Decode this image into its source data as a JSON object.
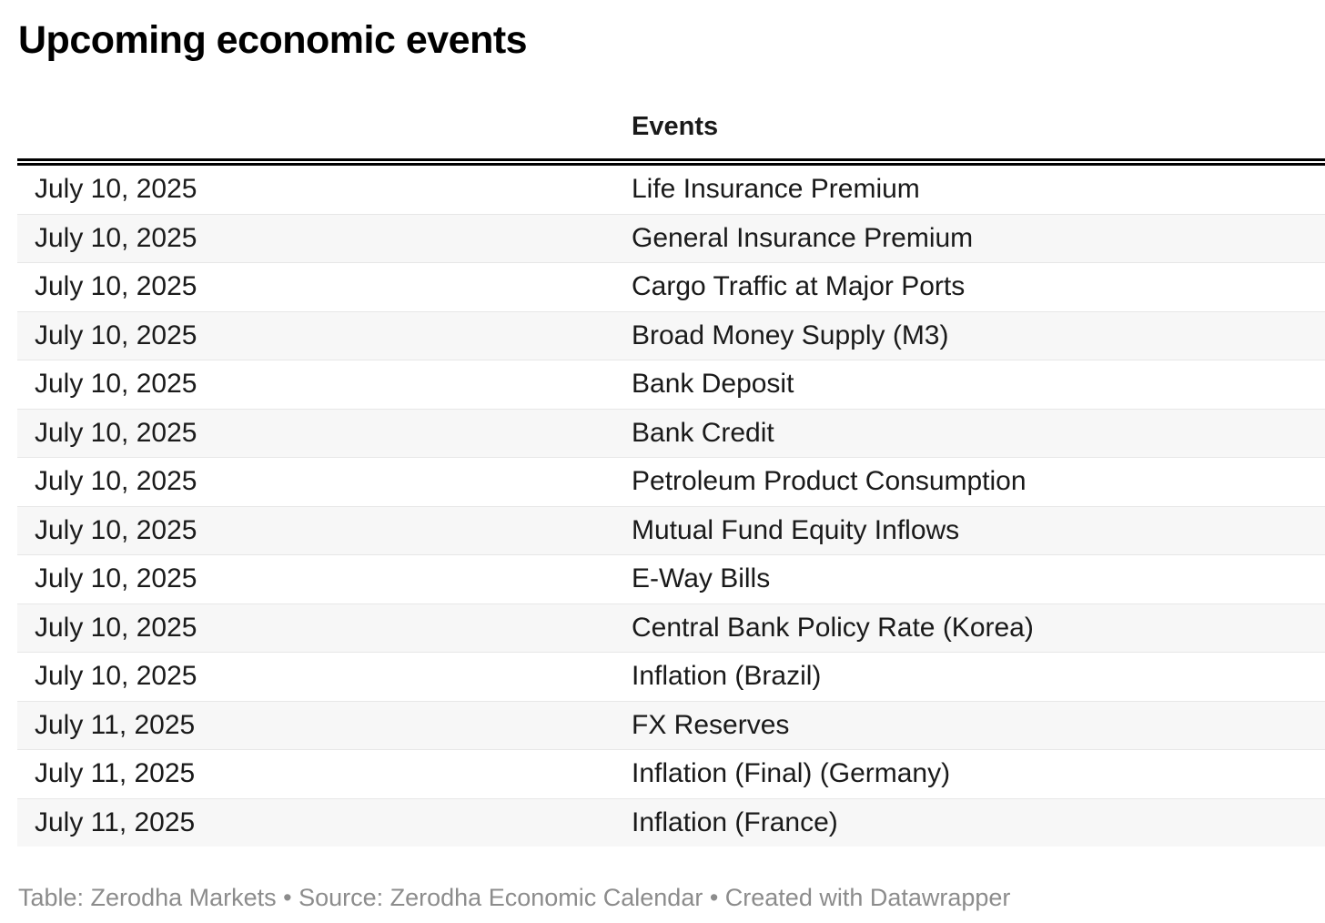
{
  "title": "Upcoming economic events",
  "table": {
    "columns": [
      {
        "label": ""
      },
      {
        "label": "Events"
      }
    ],
    "rows": [
      {
        "date": "July 10, 2025",
        "event": "Life Insurance Premium"
      },
      {
        "date": "July 10, 2025",
        "event": "General Insurance Premium"
      },
      {
        "date": "July 10, 2025",
        "event": "Cargo Traffic at Major Ports"
      },
      {
        "date": "July 10, 2025",
        "event": "Broad Money Supply (M3)"
      },
      {
        "date": "July 10, 2025",
        "event": "Bank Deposit"
      },
      {
        "date": "July 10, 2025",
        "event": "Bank Credit"
      },
      {
        "date": "July 10, 2025",
        "event": "Petroleum Product Consumption"
      },
      {
        "date": "July 10, 2025",
        "event": "Mutual Fund Equity Inflows"
      },
      {
        "date": "July 10, 2025",
        "event": "E-Way Bills"
      },
      {
        "date": "July 10, 2025",
        "event": "Central Bank Policy Rate (Korea)"
      },
      {
        "date": "July 10, 2025",
        "event": "Inflation (Brazil)"
      },
      {
        "date": "July 11, 2025",
        "event": "FX Reserves"
      },
      {
        "date": "July 11, 2025",
        "event": "Inflation (Final) (Germany)"
      },
      {
        "date": "July 11, 2025",
        "event": "Inflation (France)"
      }
    ]
  },
  "footer": {
    "text": "Table: Zerodha Markets • Source: Zerodha Economic Calendar • Created with Datawrapper"
  },
  "colors": {
    "background": "#ffffff",
    "title_text": "#000000",
    "cell_text": "#1a1a1a",
    "header_rule": "#000000",
    "row_stripe": "#f7f7f7",
    "row_divider": "#e7e7e7",
    "footer_text": "#8c8c8c"
  },
  "chart_data": {
    "type": "table",
    "title": "Upcoming economic events",
    "columns": [
      "",
      "Events"
    ],
    "rows": [
      [
        "July 10, 2025",
        "Life Insurance Premium"
      ],
      [
        "July 10, 2025",
        "General Insurance Premium"
      ],
      [
        "July 10, 2025",
        "Cargo Traffic at Major Ports"
      ],
      [
        "July 10, 2025",
        "Broad Money Supply (M3)"
      ],
      [
        "July 10, 2025",
        "Bank Deposit"
      ],
      [
        "July 10, 2025",
        "Bank Credit"
      ],
      [
        "July 10, 2025",
        "Petroleum Product Consumption"
      ],
      [
        "July 10, 2025",
        "Mutual Fund Equity Inflows"
      ],
      [
        "July 10, 2025",
        "E-Way Bills"
      ],
      [
        "July 10, 2025",
        "Central Bank Policy Rate (Korea)"
      ],
      [
        "July 10, 2025",
        "Inflation (Brazil)"
      ],
      [
        "July 11, 2025",
        "FX Reserves"
      ],
      [
        "July 11, 2025",
        "Inflation (Final) (Germany)"
      ],
      [
        "July 11, 2025",
        "Inflation (France)"
      ]
    ],
    "layout_hints": {
      "zebra_striping": true,
      "striped_rows": "even",
      "header_rule_style": "double black line under header",
      "date_column_header": "empty",
      "attribution": "Table: Zerodha Markets • Source: Zerodha Economic Calendar • Created with Datawrapper"
    }
  }
}
